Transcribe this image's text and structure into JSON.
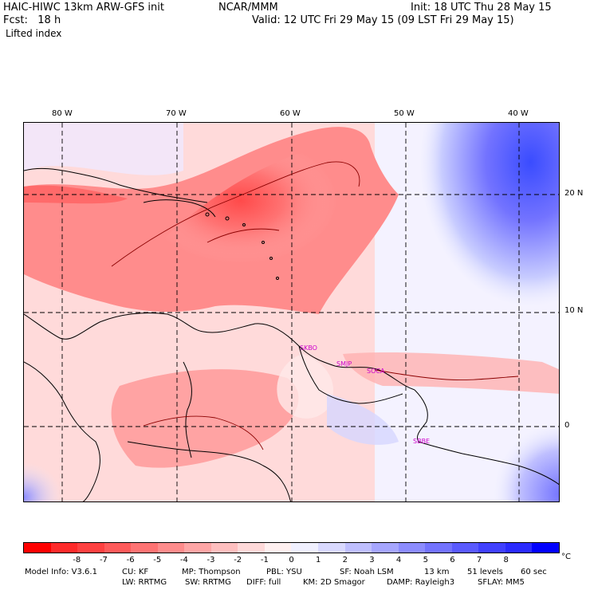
{
  "header": {
    "model": "HAIC-HIWC 13km ARW-GFS init",
    "center": "NCAR/MMM",
    "init": "Init: 18 UTC Thu 28 May 15",
    "fcst": "Fcst:   18 h",
    "valid": "Valid: 12 UTC Fri 29 May 15 (09 LST Fri 29 May 15)",
    "field": "Lifted index"
  },
  "map": {
    "lon_labels": [
      "80 W",
      "70 W",
      "60 W",
      "50 W",
      "40 W"
    ],
    "lat_labels": [
      "20 N",
      "10 N",
      "0"
    ],
    "stations": [
      "SKBO",
      "SMJP",
      "SOCA",
      "SBBE"
    ]
  },
  "colorbar": {
    "colors": [
      "#ff0000",
      "#ff2a2a",
      "#ff4040",
      "#ff5a5a",
      "#ff7373",
      "#ff8c8c",
      "#ffa6a6",
      "#ffbfbf",
      "#ffd9d9",
      "#fff0f0",
      "#f0f0ff",
      "#d9d9ff",
      "#bfbfff",
      "#a6a6ff",
      "#8c8cff",
      "#7373ff",
      "#5a5aff",
      "#4040ff",
      "#2a2aff",
      "#0000ff"
    ],
    "labels": [
      "-8",
      "-7",
      "-6",
      "-5",
      "-4",
      "-3",
      "-2",
      "-1",
      "0",
      "1",
      "2",
      "3",
      "4",
      "5",
      "6",
      "7",
      "8"
    ],
    "unit": "°C"
  },
  "footer": {
    "line1": [
      "Model Info: V3.6.1",
      "CU: KF",
      "MP: Thompson",
      "PBL: YSU",
      "SF: Noah LSM",
      "13 km",
      "51 levels",
      "60 sec"
    ],
    "line2": [
      "LW: RRTMG",
      "SW: RRTMG",
      "DIFF: full",
      "KM: 2D Smagor",
      "DAMP: Rayleigh3",
      "SFLAY: MM5"
    ]
  }
}
